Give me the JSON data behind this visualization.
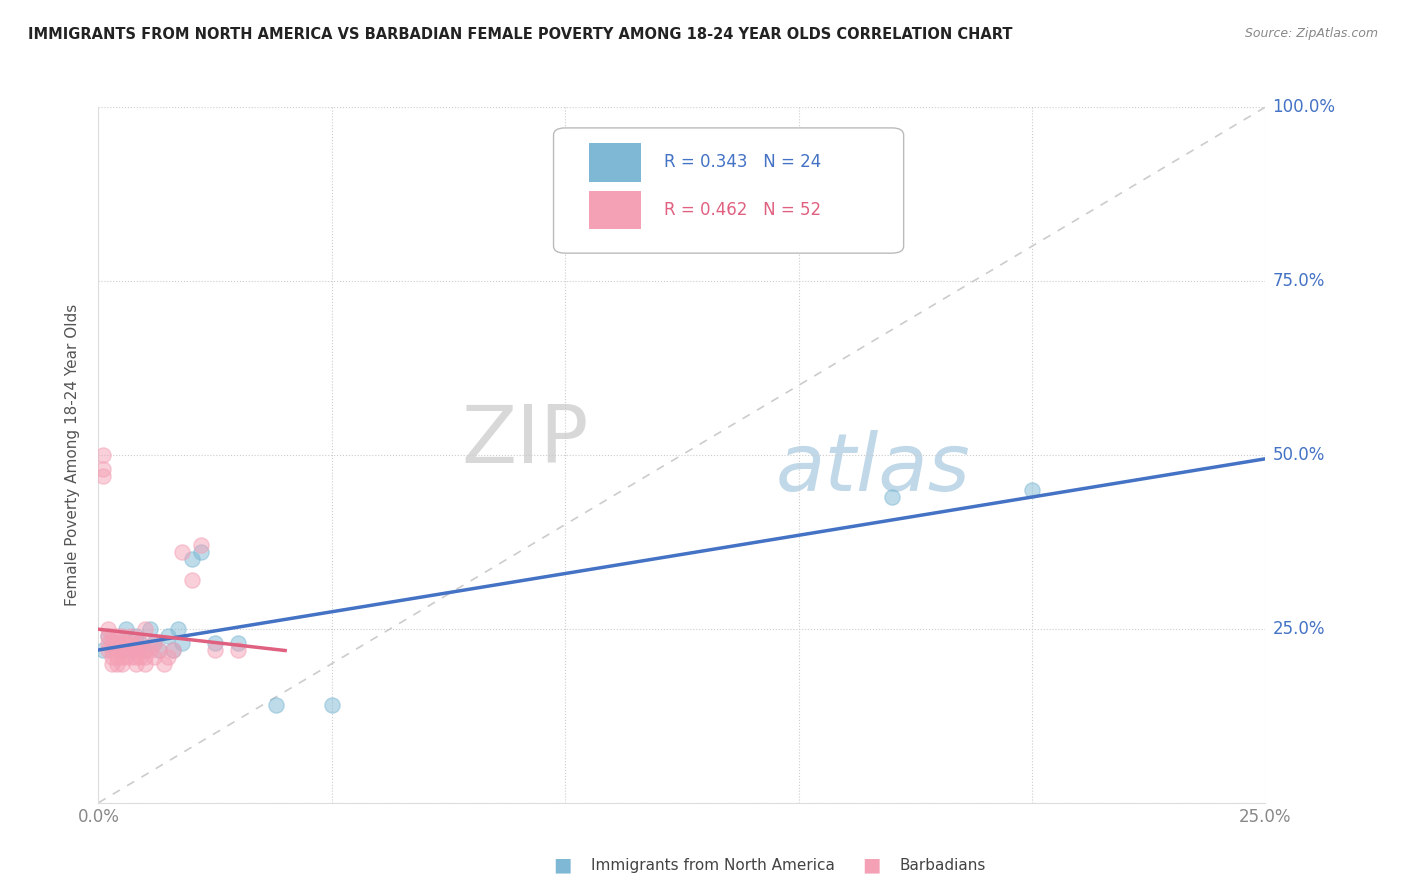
{
  "title": "IMMIGRANTS FROM NORTH AMERICA VS BARBADIAN FEMALE POVERTY AMONG 18-24 YEAR OLDS CORRELATION CHART",
  "source": "Source: ZipAtlas.com",
  "ylabel": "Female Poverty Among 18-24 Year Olds",
  "xlim": [
    0.0,
    0.25
  ],
  "ylim": [
    0.0,
    1.0
  ],
  "xticks": [
    0.0,
    0.05,
    0.1,
    0.15,
    0.2,
    0.25
  ],
  "yticks": [
    0.0,
    0.25,
    0.5,
    0.75,
    1.0
  ],
  "xtick_labels": [
    "0.0%",
    "",
    "",
    "",
    "",
    "25.0%"
  ],
  "ytick_labels": [
    "",
    "25.0%",
    "50.0%",
    "75.0%",
    "100.0%"
  ],
  "blue_color": "#7eb8d4",
  "pink_color": "#f4a0b5",
  "diagonal_color": "#cccccc",
  "watermark_zip": "ZIP",
  "watermark_atlas": "atlas",
  "legend_blue_label": "R = 0.343   N = 24",
  "legend_pink_label": "R = 0.462   N = 52",
  "blue_scatter_x": [
    0.001,
    0.002,
    0.004,
    0.005,
    0.006,
    0.007,
    0.008,
    0.009,
    0.01,
    0.011,
    0.012,
    0.013,
    0.015,
    0.016,
    0.017,
    0.018,
    0.02,
    0.022,
    0.025,
    0.03,
    0.038,
    0.05,
    0.17,
    0.2
  ],
  "blue_scatter_y": [
    0.22,
    0.24,
    0.23,
    0.22,
    0.25,
    0.22,
    0.24,
    0.23,
    0.22,
    0.25,
    0.23,
    0.22,
    0.24,
    0.22,
    0.25,
    0.23,
    0.35,
    0.36,
    0.23,
    0.23,
    0.14,
    0.14,
    0.44,
    0.45
  ],
  "pink_scatter_x": [
    0.001,
    0.001,
    0.001,
    0.002,
    0.002,
    0.002,
    0.002,
    0.003,
    0.003,
    0.003,
    0.003,
    0.003,
    0.004,
    0.004,
    0.004,
    0.004,
    0.004,
    0.005,
    0.005,
    0.005,
    0.005,
    0.005,
    0.005,
    0.006,
    0.006,
    0.006,
    0.007,
    0.007,
    0.007,
    0.008,
    0.008,
    0.008,
    0.008,
    0.009,
    0.009,
    0.009,
    0.01,
    0.01,
    0.01,
    0.01,
    0.011,
    0.012,
    0.012,
    0.013,
    0.014,
    0.015,
    0.016,
    0.018,
    0.02,
    0.022,
    0.025,
    0.03
  ],
  "pink_scatter_y": [
    0.48,
    0.5,
    0.47,
    0.22,
    0.23,
    0.24,
    0.25,
    0.22,
    0.23,
    0.24,
    0.2,
    0.21,
    0.22,
    0.23,
    0.21,
    0.2,
    0.24,
    0.22,
    0.23,
    0.21,
    0.2,
    0.24,
    0.22,
    0.21,
    0.23,
    0.22,
    0.24,
    0.23,
    0.21,
    0.22,
    0.23,
    0.21,
    0.2,
    0.22,
    0.21,
    0.23,
    0.22,
    0.21,
    0.2,
    0.25,
    0.22,
    0.21,
    0.23,
    0.22,
    0.2,
    0.21,
    0.22,
    0.36,
    0.32,
    0.37,
    0.22,
    0.22
  ],
  "background_color": "#ffffff"
}
